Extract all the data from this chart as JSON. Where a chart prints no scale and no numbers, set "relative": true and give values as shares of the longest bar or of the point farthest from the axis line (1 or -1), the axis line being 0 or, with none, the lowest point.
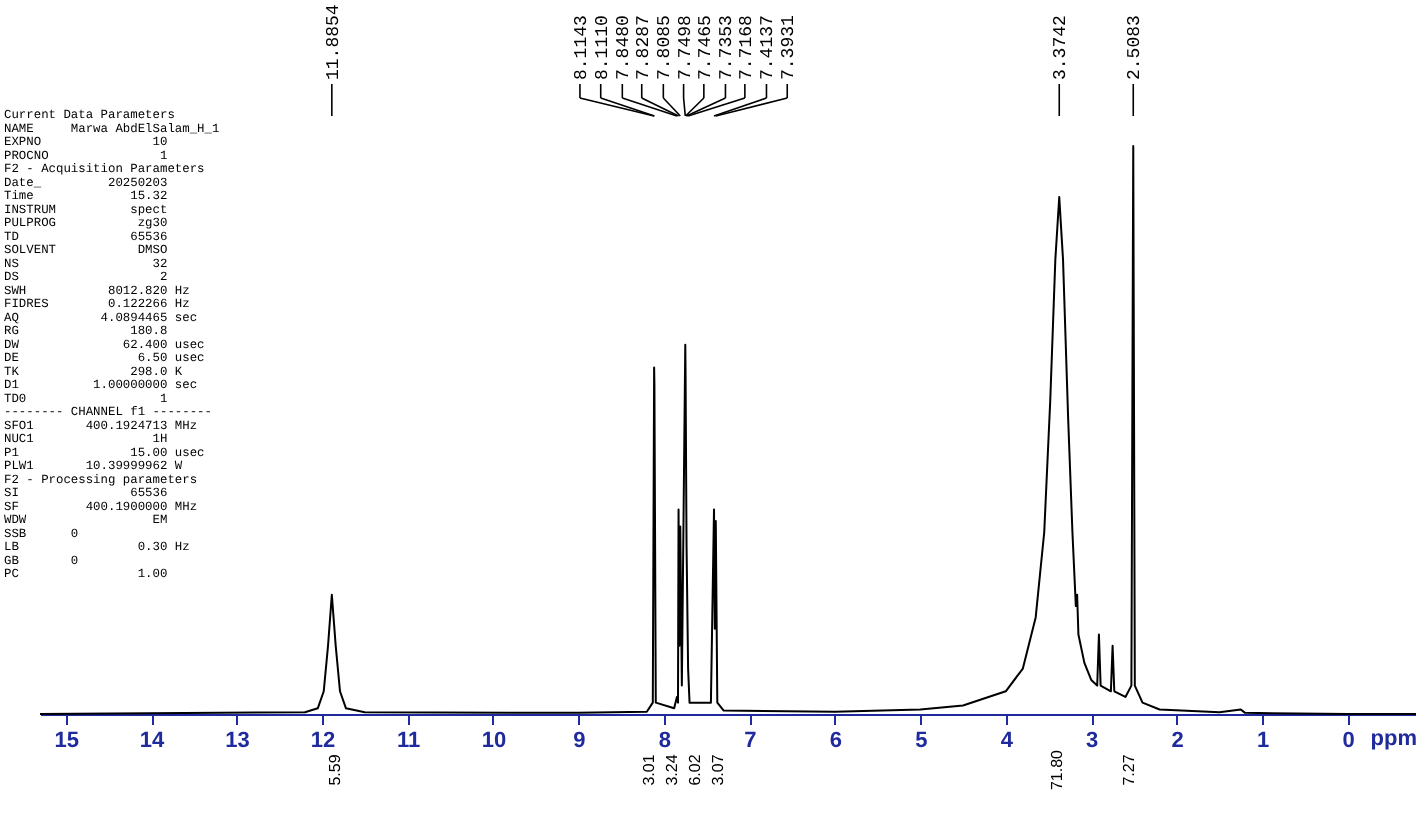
{
  "chart_data": {
    "type": "line",
    "relative": true,
    "xlabel": "ppm",
    "xlim": [
      15.3,
      -0.8
    ],
    "xticks": [
      15,
      14,
      13,
      12,
      11,
      10,
      9,
      8,
      7,
      6,
      5,
      4,
      3,
      2,
      1,
      0
    ],
    "grid": false,
    "x": [
      15.3,
      12.2,
      12.05,
      11.98,
      11.93,
      11.8854,
      11.84,
      11.79,
      11.72,
      11.5,
      9.0,
      8.2,
      8.13,
      8.1143,
      8.111,
      8.095,
      7.88,
      7.848,
      7.835,
      7.8287,
      7.8185,
      7.8085,
      7.79,
      7.7498,
      7.7465,
      7.7353,
      7.7168,
      7.7,
      7.45,
      7.4137,
      7.404,
      7.3931,
      7.375,
      7.3,
      6.0,
      5.0,
      4.5,
      4.0,
      3.8,
      3.65,
      3.55,
      3.48,
      3.42,
      3.3742,
      3.33,
      3.27,
      3.22,
      3.18,
      3.165,
      3.15,
      3.08,
      3.0,
      2.93,
      2.91,
      2.89,
      2.77,
      2.75,
      2.73,
      2.6,
      2.53,
      2.5083,
      2.49,
      2.4,
      2.2,
      1.5,
      1.25,
      1.2,
      0,
      -0.8
    ],
    "values": [
      0,
      0.003,
      0.01,
      0.04,
      0.12,
      0.21,
      0.12,
      0.04,
      0.01,
      0.003,
      0.002,
      0.004,
      0.02,
      0.61,
      0.58,
      0.02,
      0.01,
      0.03,
      0.02,
      0.36,
      0.12,
      0.33,
      0.05,
      0.65,
      0.6,
      0.3,
      0.08,
      0.02,
      0.02,
      0.36,
      0.15,
      0.34,
      0.02,
      0.006,
      0.004,
      0.008,
      0.015,
      0.04,
      0.08,
      0.17,
      0.32,
      0.55,
      0.8,
      0.91,
      0.8,
      0.52,
      0.32,
      0.19,
      0.21,
      0.14,
      0.09,
      0.06,
      0.05,
      0.14,
      0.05,
      0.04,
      0.12,
      0.04,
      0.03,
      0.05,
      1.0,
      0.05,
      0.02,
      0.008,
      0.003,
      0.008,
      0.002,
      0,
      0
    ],
    "annotations": [
      "Current Data Parameters",
      "NAME     Marwa AbdElSalam_H_1",
      "EXPNO               10",
      "PROCNO               1",
      "F2 - Acquisition Parameters",
      "Date_         20250203",
      "Time             15.32",
      "INSTRUM          spect",
      "PULPROG           zg30",
      "TD               65536",
      "SOLVENT           DMSO",
      "NS                  32",
      "DS                   2",
      "SWH           8012.820 Hz",
      "FIDRES        0.122266 Hz",
      "AQ           4.0894465 sec",
      "RG               180.8",
      "DW              62.400 usec",
      "DE                6.50 usec",
      "TK               298.0 K",
      "D1          1.00000000 sec",
      "TD0                  1",
      "-------- CHANNEL f1 --------",
      "SFO1       400.1924713 MHz",
      "NUC1                1H",
      "P1               15.00 usec",
      "PLW1       10.39999962 W",
      "F2 - Processing parameters",
      "SI               65536",
      "SF         400.1900000 MHz",
      "WDW                 EM",
      "SSB      0",
      "LB                0.30 Hz",
      "GB       0",
      "PC                1.00",
      {
        "text": "11.8854",
        "x": 11.8854
      },
      {
        "text": "8.1143",
        "x": 8.1143
      },
      {
        "text": "8.1110",
        "x": 8.111
      },
      {
        "text": "7.8480",
        "x": 7.848
      },
      {
        "text": "7.8287",
        "x": 7.8287
      },
      {
        "text": "7.8085",
        "x": 7.8085
      },
      {
        "text": "7.7498",
        "x": 7.7498
      },
      {
        "text": "7.7465",
        "x": 7.7465
      },
      {
        "text": "7.7353",
        "x": 7.7353
      },
      {
        "text": "7.7168",
        "x": 7.7168
      },
      {
        "text": "7.4137",
        "x": 7.4137
      },
      {
        "text": "7.3931",
        "x": 7.3931
      },
      {
        "text": "3.3742",
        "x": 3.3742
      },
      {
        "text": "2.5083",
        "x": 2.5083
      },
      "5.59",
      "3.01",
      "3.24",
      "6.02",
      "3.07",
      "71.80",
      "7.27"
    ]
  }
}
